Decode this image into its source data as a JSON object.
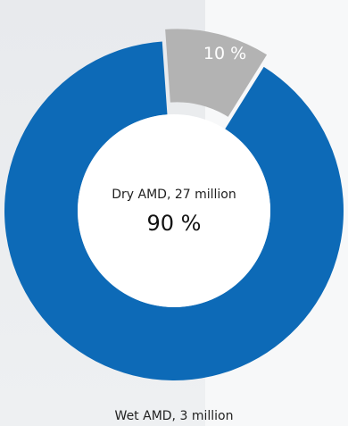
{
  "chart_data": {
    "type": "pie",
    "style": "donut",
    "categories": [
      "Dry AMD, 27 million",
      "Wet AMD, 3 million"
    ],
    "values": [
      90,
      10
    ],
    "value_labels": [
      "90 %",
      "10 %"
    ],
    "colors": [
      "#0d6ab7",
      "#b3b3b3"
    ],
    "highlighted": "Wet AMD, 3 million"
  }
}
